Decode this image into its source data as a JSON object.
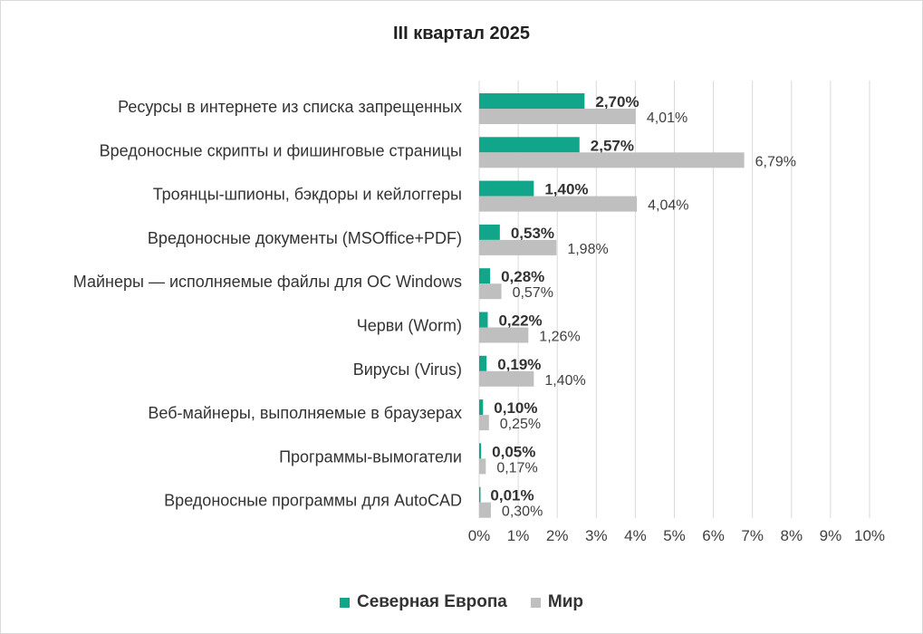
{
  "chart_data": {
    "type": "bar",
    "orientation": "horizontal",
    "title": "III квартал 2025",
    "categories": [
      "Ресурсы в интернете из списка запрещенных",
      "Вредоносные скрипты и фишинговые страницы",
      "Троянцы-шпионы, бэкдоры и кейлоггеры",
      "Вредоносные документы (MSOffice+PDF)",
      "Майнеры — исполняемые файлы для ОС Windows",
      "Черви (Worm)",
      "Вирусы (Virus)",
      "Веб-майнеры, выполняемые в браузерах",
      "Программы-вымогатели",
      "Вредоносные программы для AutoCAD"
    ],
    "series": [
      {
        "name": "Северная Европа",
        "color": "#11a58a",
        "values": [
          2.7,
          2.57,
          1.4,
          0.53,
          0.28,
          0.22,
          0.19,
          0.1,
          0.05,
          0.01
        ],
        "labels": [
          "2,70%",
          "2,57%",
          "1,40%",
          "0,53%",
          "0,28%",
          "0,22%",
          "0,19%",
          "0,10%",
          "0,05%",
          "0,01%"
        ]
      },
      {
        "name": "Мир",
        "color": "#bfbfbf",
        "values": [
          4.01,
          6.79,
          4.04,
          1.98,
          0.57,
          1.26,
          1.4,
          0.25,
          0.17,
          0.3
        ],
        "labels": [
          "4,01%",
          "6,79%",
          "4,04%",
          "1,98%",
          "0,57%",
          "1,26%",
          "1,40%",
          "0,25%",
          "0,17%",
          "0,30%"
        ]
      }
    ],
    "xlim": [
      0,
      10
    ],
    "xticks": [
      0,
      1,
      2,
      3,
      4,
      5,
      6,
      7,
      8,
      9,
      10
    ],
    "xtick_labels": [
      "0%",
      "1%",
      "2%",
      "3%",
      "4%",
      "5%",
      "6%",
      "7%",
      "8%",
      "9%",
      "10%"
    ],
    "grid": true,
    "legend_position": "bottom"
  }
}
